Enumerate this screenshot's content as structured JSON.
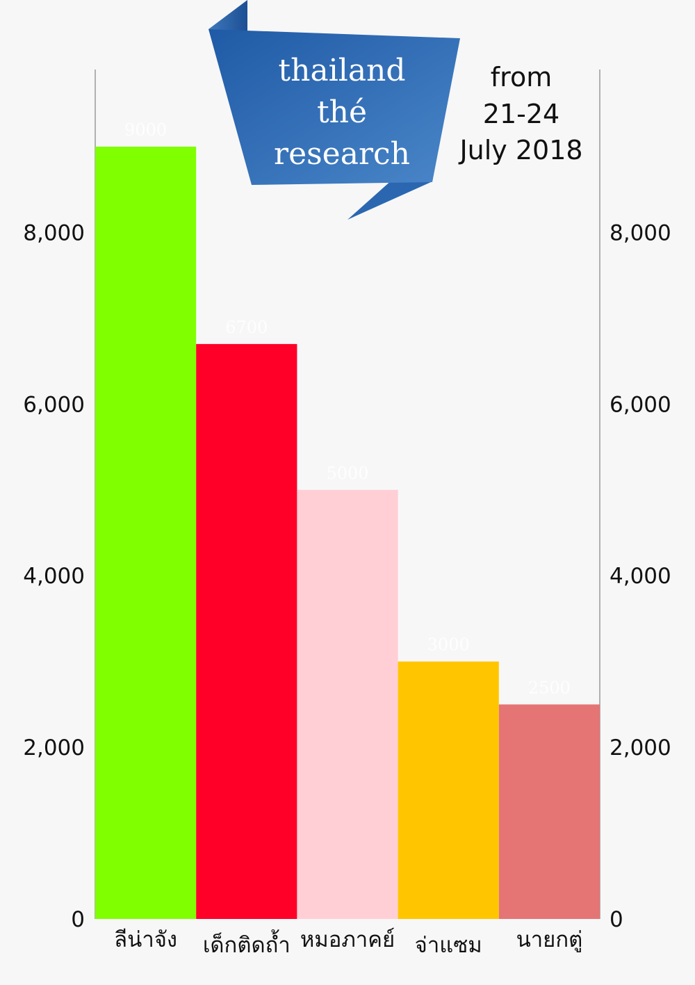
{
  "banner": {
    "lines": [
      "thailand",
      "thé",
      "research"
    ]
  },
  "date_note": {
    "lines": [
      "from",
      "21-24",
      "July 2018"
    ]
  },
  "colors": {
    "banner_light": "#4a86c8",
    "banner_dark": "#1f5aa6",
    "axis": "#999999"
  },
  "chart_data": {
    "type": "bar",
    "categories": [
      "ลีน่าจัง",
      "เด็กติดถ้ำ",
      "หมอภาคย์",
      "จ่าแซม",
      "นายกตู่"
    ],
    "values": [
      9000,
      6700,
      5000,
      3000,
      2500
    ],
    "value_labels": [
      "9000",
      "6700",
      "5000",
      "3000",
      "2500"
    ],
    "colors": [
      "#80ff00",
      "#ff0028",
      "#ffcfd5",
      "#ffc600",
      "#e47574"
    ],
    "ylim": [
      0,
      9900
    ],
    "yticks": [
      0,
      2000,
      4000,
      6000,
      8000
    ],
    "ytick_labels": [
      "0",
      "2,000",
      "4,000",
      "6,000",
      "8,000"
    ],
    "y_axis_left": true,
    "y_axis_right": true,
    "grid": false,
    "title": "",
    "xlabel": "",
    "ylabel": ""
  }
}
